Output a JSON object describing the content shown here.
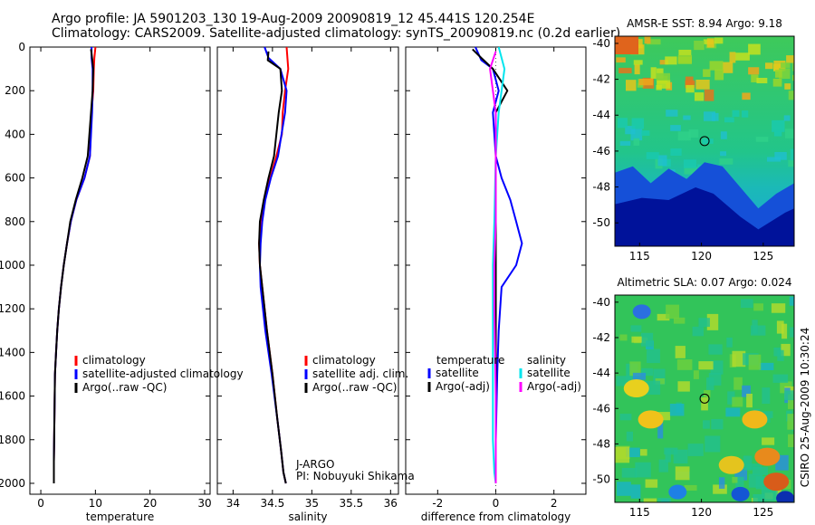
{
  "header": {
    "line1": "Argo profile: JA 5901203_130 19-Aug-2009 20090819_12 45.441S 120.254E",
    "line2": "Climatology: CARS2009. Satellite-adjusted climatology: synTS_20090819.nc (0.2d earlier)"
  },
  "side_label": "CSIRO 25-Aug-2009 10:30:24",
  "colors": {
    "climatology": "#ff0000",
    "satellite": "#0000ff",
    "argo": "#000000",
    "salinity_satellite": "#00e5ee",
    "salinity_argo": "#ff00ff"
  },
  "chart_data": [
    {
      "id": "temperature",
      "type": "line",
      "xlabel": "temperature",
      "ylabel": "",
      "xlim": [
        -2,
        31
      ],
      "ylim": [
        2050,
        0
      ],
      "xticks": [
        0,
        10,
        20,
        30
      ],
      "xticklabels": [
        "0",
        "10",
        "20",
        "30"
      ],
      "yticks": [
        0,
        200,
        400,
        600,
        800,
        1000,
        1200,
        1400,
        1600,
        1800,
        2000
      ],
      "yticklabels": [
        "0",
        "200",
        "400",
        "600",
        "800",
        "1000",
        "1200",
        "1400",
        "1600",
        "1800",
        "2000"
      ],
      "legend": [
        "climatology",
        "satellite-adjusted climatology",
        "Argo(..raw -QC)"
      ],
      "legend_position": "bottom-right",
      "series": [
        {
          "name": "climatology",
          "color": "#ff0000",
          "x": [
            10.0,
            9.8,
            9.7,
            9.6,
            9.3,
            9.0,
            8.0,
            6.5,
            5.5,
            4.8,
            4.2,
            3.7,
            3.3,
            3.0,
            2.8,
            2.6,
            2.5,
            2.4,
            2.4
          ],
          "y": [
            0,
            50,
            100,
            200,
            300,
            500,
            600,
            700,
            800,
            900,
            1000,
            1100,
            1200,
            1300,
            1400,
            1500,
            1700,
            1900,
            2000
          ]
        },
        {
          "name": "satellite-adjusted climatology",
          "color": "#0000ff",
          "x": [
            9.3,
            9.3,
            9.5,
            9.5,
            9.4,
            9.0,
            8.0,
            6.5,
            5.5,
            4.8,
            4.2,
            3.7,
            3.3,
            3.0,
            2.8,
            2.6,
            2.5,
            2.4,
            2.4
          ],
          "y": [
            0,
            50,
            100,
            200,
            300,
            500,
            600,
            700,
            800,
            900,
            1000,
            1100,
            1200,
            1300,
            1400,
            1500,
            1700,
            1900,
            2000
          ]
        },
        {
          "name": "Argo(..raw -QC)",
          "color": "#000000",
          "x": [
            9.2,
            9.4,
            9.6,
            9.5,
            9.2,
            8.6,
            7.6,
            6.4,
            5.4,
            4.8,
            4.2,
            3.7,
            3.3,
            3.0,
            2.8,
            2.6,
            2.5,
            2.4,
            2.4
          ],
          "y": [
            10,
            50,
            100,
            200,
            300,
            500,
            600,
            700,
            800,
            900,
            1000,
            1100,
            1200,
            1300,
            1400,
            1500,
            1700,
            1900,
            2000
          ]
        }
      ]
    },
    {
      "id": "salinity",
      "type": "line",
      "xlabel": "salinity",
      "xlim": [
        33.8,
        36.1
      ],
      "ylim": [
        2050,
        0
      ],
      "xticks": [
        34,
        34.5,
        35,
        35.5,
        36
      ],
      "xticklabels": [
        "34",
        "34.5",
        "35",
        "35.5",
        "36"
      ],
      "legend": [
        "climatology",
        "satellite adj. clim.",
        "Argo(..raw -QC)"
      ],
      "legend_position": "bottom-right",
      "annotation": [
        "J-ARGO",
        "PI: Nobuyuki Shikama"
      ],
      "series": [
        {
          "name": "climatology",
          "color": "#ff0000",
          "x": [
            34.68,
            34.7,
            34.66,
            34.63,
            34.62,
            34.55,
            34.47,
            34.4,
            34.35,
            34.33,
            34.34,
            34.37,
            34.43,
            34.5,
            34.56,
            34.61,
            34.64,
            34.67
          ],
          "y": [
            0,
            100,
            200,
            300,
            400,
            500,
            600,
            700,
            800,
            900,
            1000,
            1100,
            1300,
            1500,
            1700,
            1850,
            1950,
            2000
          ]
        },
        {
          "name": "satellite adj. clim.",
          "color": "#0000ff",
          "x": [
            34.4,
            34.45,
            34.6,
            34.68,
            34.66,
            34.57,
            34.48,
            34.41,
            34.37,
            34.35,
            34.34,
            34.35,
            34.41,
            34.49,
            34.56,
            34.61,
            34.64,
            34.67
          ],
          "y": [
            0,
            50,
            100,
            200,
            300,
            500,
            600,
            700,
            800,
            900,
            1000,
            1100,
            1300,
            1500,
            1700,
            1850,
            1950,
            2000
          ]
        },
        {
          "name": "Argo(..raw -QC)",
          "color": "#000000",
          "x": [
            34.45,
            34.44,
            34.6,
            34.62,
            34.58,
            34.52,
            34.45,
            34.39,
            34.34,
            34.33,
            34.34,
            34.37,
            34.43,
            34.5,
            34.56,
            34.61,
            34.64,
            34.67
          ],
          "y": [
            20,
            60,
            100,
            200,
            300,
            500,
            600,
            700,
            800,
            900,
            1000,
            1100,
            1300,
            1500,
            1700,
            1850,
            1950,
            2000
          ]
        }
      ]
    },
    {
      "id": "difference",
      "type": "line",
      "xlabel": "difference from climatology",
      "xlim": [
        -3.1,
        3.1
      ],
      "ylim": [
        2050,
        0
      ],
      "xticks": [
        -2,
        0,
        2
      ],
      "xticklabels": [
        "-2",
        "0",
        "2"
      ],
      "legend_columns": [
        {
          "heading": "temperature",
          "entries": [
            "satellite",
            "Argo(-adj)"
          ]
        },
        {
          "heading": "salinity",
          "entries": [
            "satellite",
            "Argo(-adj)"
          ]
        }
      ],
      "legend_position": "bottom-right",
      "series": [
        {
          "name": "temperature satellite",
          "color": "#0000ff",
          "x": [
            -0.7,
            -0.5,
            -0.1,
            0.1,
            -0.1,
            0.0,
            0.2,
            0.5,
            0.7,
            0.9,
            0.7,
            0.2,
            0.1,
            0.05,
            0.0,
            0.0
          ],
          "y": [
            0,
            60,
            100,
            200,
            300,
            500,
            600,
            700,
            800,
            900,
            1000,
            1100,
            1300,
            1500,
            1800,
            2000
          ]
        },
        {
          "name": "temperature Argo(-adj)",
          "color": "#000000",
          "x": [
            -0.8,
            -0.5,
            -0.1,
            0.4,
            0.0,
            0.0,
            0.0,
            0.0,
            0.0,
            0.0,
            0.0,
            0.0
          ],
          "y": [
            10,
            50,
            100,
            200,
            300,
            500,
            800,
            1000,
            1200,
            1500,
            1800,
            2000
          ]
        },
        {
          "name": "salinity satellite",
          "color": "#00e5ee",
          "x": [
            0.1,
            0.3,
            0.2,
            0.1,
            0.0,
            -0.05,
            -0.1,
            -0.1,
            -0.1,
            -0.1,
            -0.05,
            0.0
          ],
          "y": [
            0,
            100,
            200,
            300,
            500,
            800,
            1000,
            1200,
            1500,
            1800,
            1950,
            2000
          ]
        },
        {
          "name": "salinity Argo(-adj)",
          "color": "#ff00ff",
          "x": [
            0.0,
            -0.2,
            -0.1,
            0.0,
            0.0,
            0.0,
            -0.05,
            -0.05,
            0.0,
            0.0
          ],
          "y": [
            20,
            100,
            200,
            300,
            500,
            800,
            1000,
            1200,
            1600,
            2000
          ]
        }
      ]
    },
    {
      "id": "sst_map",
      "type": "heatmap",
      "title": "AMSR-E SST: 8.94 Argo: 9.18",
      "xticks": [
        115,
        120,
        125
      ],
      "xticklabels": [
        "115",
        "120",
        "125"
      ],
      "yticks": [
        -40,
        -42,
        -44,
        -46,
        -48,
        -50
      ],
      "yticklabels": [
        "-40",
        "-42",
        "-44",
        "-46",
        "-48",
        "-50"
      ],
      "xlim": [
        113,
        127.5
      ],
      "ylim": [
        -51.3,
        -39.6
      ],
      "marker": {
        "lon": 120.254,
        "lat": -45.441
      }
    },
    {
      "id": "sla_map",
      "type": "heatmap",
      "title": "Altimetric SLA: 0.07 Argo: 0.024",
      "xticks": [
        115,
        120,
        125
      ],
      "xticklabels": [
        "115",
        "120",
        "125"
      ],
      "yticks": [
        -40,
        -42,
        -44,
        -46,
        -48,
        -50
      ],
      "yticklabels": [
        "-40",
        "-42",
        "-44",
        "-46",
        "-48",
        "-50"
      ],
      "xlim": [
        113,
        127.5
      ],
      "ylim": [
        -51.3,
        -39.6
      ],
      "marker": {
        "lon": 120.254,
        "lat": -45.441
      }
    }
  ]
}
